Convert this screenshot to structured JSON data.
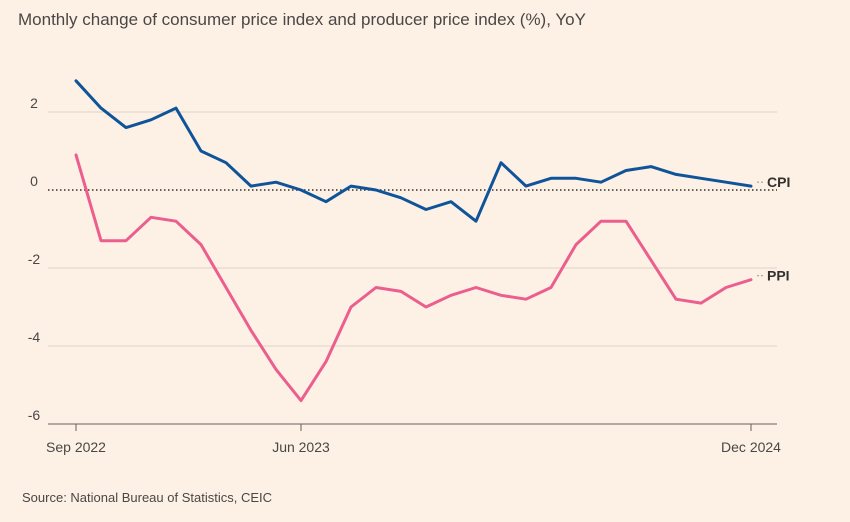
{
  "title": "Monthly change of consumer price index and producer price index (%), YoY",
  "source": "Source: National Bureau of Statistics, CEIC",
  "chart_data": {
    "type": "line",
    "title": "Monthly change of consumer price index and producer price index (%), YoY",
    "xlabel": "",
    "ylabel": "",
    "ylim": [
      -6,
      3.3
    ],
    "yticks": [
      2,
      0,
      -2,
      -4,
      -6
    ],
    "yticks_labels": [
      "2",
      "0",
      "-2",
      "-4",
      "-6"
    ],
    "x": [
      "2022-09",
      "2022-10",
      "2022-11",
      "2022-12",
      "2023-01",
      "2023-02",
      "2023-03",
      "2023-04",
      "2023-05",
      "2023-06",
      "2023-07",
      "2023-08",
      "2023-09",
      "2023-10",
      "2023-11",
      "2023-12",
      "2024-01",
      "2024-02",
      "2024-03",
      "2024-04",
      "2024-05",
      "2024-06",
      "2024-07",
      "2024-08",
      "2024-09",
      "2024-10",
      "2024-11",
      "2024-12"
    ],
    "xticks": [
      {
        "index": 0,
        "label": "Sep 2022"
      },
      {
        "index": 9,
        "label": "Jun 2023"
      },
      {
        "index": 27,
        "label": "Dec 2024"
      }
    ],
    "grid": true,
    "zero_line": "dotted",
    "series": [
      {
        "name": "CPI",
        "color": "#0f5499",
        "values": [
          2.8,
          2.1,
          1.6,
          1.8,
          2.1,
          1.0,
          0.7,
          0.1,
          0.2,
          0.0,
          -0.3,
          0.1,
          0.0,
          -0.2,
          -0.5,
          -0.3,
          -0.8,
          0.7,
          0.1,
          0.3,
          0.3,
          0.2,
          0.5,
          0.6,
          0.4,
          0.3,
          0.2,
          0.1
        ]
      },
      {
        "name": "PPI",
        "color": "#eb5e8d",
        "values": [
          0.9,
          -1.3,
          -1.3,
          -0.7,
          -0.8,
          -1.4,
          -2.5,
          -3.6,
          -4.6,
          -5.4,
          -4.4,
          -3.0,
          -2.5,
          -2.6,
          -3.0,
          -2.7,
          -2.5,
          -2.7,
          -2.8,
          -2.5,
          -1.4,
          -0.8,
          -0.8,
          -1.8,
          -2.8,
          -2.9,
          -2.5,
          -2.3
        ]
      }
    ],
    "legend": "inline labels at right end of each line"
  }
}
